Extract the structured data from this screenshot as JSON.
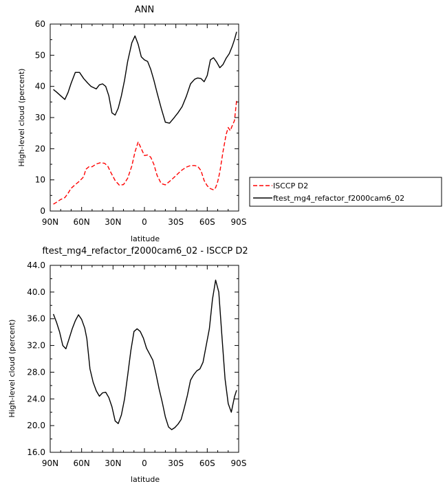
{
  "chart_data": [
    {
      "type": "line",
      "title": "ANN",
      "xlabel": "latitude",
      "ylabel": "High-level cloud (percent)",
      "xlim": [
        -90,
        90
      ],
      "ylim": [
        0,
        60
      ],
      "x_ticks": [
        -90,
        -60,
        -30,
        0,
        30,
        60,
        90
      ],
      "x_tick_labels": [
        "90N",
        "60N",
        "30N",
        "0",
        "30S",
        "60S",
        "90S"
      ],
      "y_ticks": [
        0,
        10,
        20,
        30,
        40,
        50,
        60
      ],
      "y_tick_labels": [
        "0",
        "10",
        "20",
        "30",
        "40",
        "50",
        "60"
      ],
      "grid": false,
      "legend_position": "right",
      "series": [
        {
          "name": "ISCCP D2",
          "color": "#ff0000",
          "dash": "dashed",
          "x": [
            -87,
            -84,
            -80,
            -76,
            -73,
            -70,
            -66,
            -62,
            -58,
            -56,
            -53,
            -50,
            -46,
            -42,
            -38,
            -35,
            -32,
            -28,
            -24,
            -20,
            -16,
            -12,
            -9,
            -6,
            -3,
            0,
            3,
            6,
            9,
            12,
            16,
            20,
            24,
            28,
            32,
            36,
            40,
            44,
            48,
            51,
            54,
            57,
            60,
            63,
            66,
            68,
            70,
            72,
            75,
            78,
            80,
            82,
            84,
            86,
            88
          ],
          "y": [
            2.2,
            2.8,
            3.7,
            4.3,
            5.7,
            7.3,
            8.5,
            9.6,
            11.0,
            13.4,
            14.2,
            14.2,
            15.1,
            15.5,
            15.3,
            14.4,
            12.3,
            9.8,
            8.3,
            8.5,
            10.5,
            14.5,
            19.0,
            22.2,
            20.0,
            17.8,
            18.0,
            17.3,
            15.0,
            11.5,
            8.8,
            8.4,
            9.5,
            10.7,
            12.0,
            13.2,
            14.1,
            14.6,
            14.6,
            14.3,
            13.0,
            9.8,
            8.1,
            7.2,
            6.8,
            7.5,
            9.5,
            12.5,
            19.0,
            24.5,
            26.8,
            25.8,
            27.5,
            29.0,
            35.5
          ]
        },
        {
          "name": "ftest_mg4_refactor_f2000cam6_02",
          "color": "#000000",
          "dash": "solid",
          "x": [
            -87,
            -84,
            -80,
            -76,
            -73,
            -70,
            -66,
            -62,
            -58,
            -54,
            -51,
            -48,
            -46,
            -43,
            -40,
            -37,
            -34,
            -31,
            -28,
            -25,
            -22,
            -19,
            -16,
            -12,
            -9,
            -6,
            -3,
            0,
            3,
            6,
            9,
            12,
            16,
            20,
            24,
            28,
            32,
            36,
            40,
            44,
            48,
            51,
            54,
            57,
            60,
            63,
            66,
            69,
            72,
            75,
            78,
            81,
            84,
            86,
            88
          ],
          "y": [
            39.0,
            38.2,
            37.0,
            35.8,
            38.0,
            41.0,
            44.5,
            44.5,
            42.5,
            41.0,
            40.0,
            39.5,
            39.2,
            40.5,
            40.8,
            40.0,
            37.0,
            31.5,
            30.8,
            33.0,
            37.0,
            42.0,
            48.0,
            54.0,
            56.2,
            53.5,
            49.5,
            48.5,
            48.0,
            45.5,
            42.0,
            38.0,
            33.0,
            28.5,
            28.2,
            29.8,
            31.5,
            33.5,
            36.8,
            40.8,
            42.3,
            42.7,
            42.5,
            41.5,
            43.5,
            48.5,
            49.2,
            47.8,
            46.0,
            47.0,
            49.0,
            50.5,
            53.0,
            55.0,
            57.5
          ]
        }
      ]
    },
    {
      "type": "line",
      "title": "ftest_mg4_refactor_f2000cam6_02 - ISCCP D2",
      "xlabel": "latitude",
      "ylabel": "High-level cloud (percent)",
      "xlim": [
        -90,
        90
      ],
      "ylim": [
        16,
        44
      ],
      "x_ticks": [
        -90,
        -60,
        -30,
        0,
        30,
        60,
        90
      ],
      "x_tick_labels": [
        "90N",
        "60N",
        "30N",
        "0",
        "30S",
        "60S",
        "90S"
      ],
      "y_ticks": [
        16,
        20,
        24,
        28,
        32,
        36,
        40,
        44
      ],
      "y_tick_labels": [
        "16.0",
        "20.0",
        "24.0",
        "28.0",
        "32.0",
        "36.0",
        "40.0",
        "44.0"
      ],
      "grid": false,
      "series": [
        {
          "color": "#000000",
          "dash": "solid",
          "x": [
            -87,
            -84,
            -81,
            -78,
            -75,
            -72,
            -69,
            -66,
            -63,
            -60,
            -57,
            -55,
            -52,
            -49,
            -46,
            -43,
            -40,
            -37,
            -34,
            -31,
            -28,
            -25,
            -22,
            -19,
            -16,
            -13,
            -10,
            -7,
            -4,
            -1,
            2,
            5,
            8,
            11,
            14,
            17,
            20,
            23,
            26,
            29,
            32,
            35,
            38,
            41,
            44,
            47,
            50,
            53,
            56,
            59,
            62,
            65,
            68,
            71,
            74,
            77,
            80,
            83,
            86,
            88
          ],
          "y": [
            36.7,
            35.5,
            34.0,
            32.0,
            31.5,
            33.0,
            34.5,
            35.7,
            36.6,
            35.9,
            34.6,
            33.0,
            28.5,
            26.5,
            25.2,
            24.4,
            24.9,
            25.0,
            24.2,
            22.8,
            20.7,
            20.3,
            21.6,
            24.0,
            27.5,
            31.2,
            34.1,
            34.5,
            34.1,
            33.1,
            31.6,
            30.7,
            29.8,
            27.8,
            25.5,
            23.5,
            21.3,
            19.8,
            19.4,
            19.7,
            20.2,
            20.9,
            22.6,
            24.5,
            26.8,
            27.6,
            28.2,
            28.5,
            29.5,
            32.0,
            34.5,
            38.9,
            41.8,
            40.0,
            33.5,
            27.0,
            23.3,
            22.0,
            24.3,
            25.3
          ]
        }
      ]
    }
  ],
  "legend": {
    "entries": [
      {
        "label": "ISCCP D2",
        "color": "#ff0000",
        "dash": "dashed"
      },
      {
        "label": "ftest_mg4_refactor_f2000cam6_02",
        "color": "#000000",
        "dash": "solid"
      }
    ]
  }
}
